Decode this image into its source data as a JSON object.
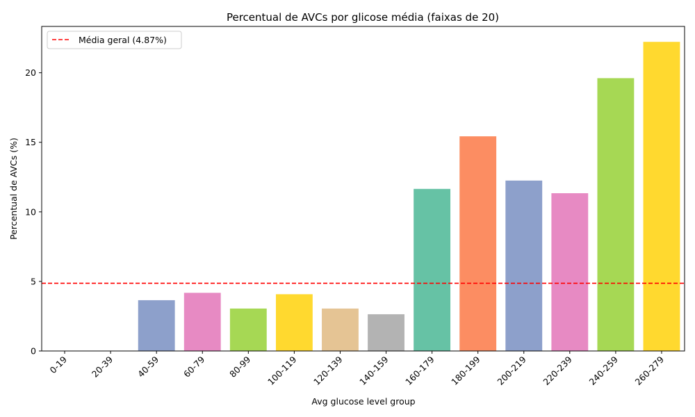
{
  "chart_data": {
    "type": "bar",
    "title": "Percentual de AVCs por glicose média (faixas de 20)",
    "xlabel": "Avg glucose level group",
    "ylabel": "Percentual de AVCs (%)",
    "categories": [
      "0-19",
      "20-39",
      "40-59",
      "60-79",
      "80-99",
      "100-119",
      "120-139",
      "140-159",
      "160-179",
      "180-199",
      "200-219",
      "220-239",
      "240-259",
      "260-279"
    ],
    "values": [
      0,
      0,
      3.65,
      4.18,
      3.05,
      4.08,
      3.05,
      2.64,
      11.65,
      15.43,
      12.25,
      11.34,
      19.61,
      22.22
    ],
    "bar_colors": [
      "#66c2a5",
      "#fc8d62",
      "#8da0cb",
      "#e78ac3",
      "#a6d854",
      "#ffd92f",
      "#e5c494",
      "#b3b3b3",
      "#66c2a5",
      "#fc8d62",
      "#8da0cb",
      "#e78ac3",
      "#a6d854",
      "#ffd92f"
    ],
    "yticks": [
      0,
      5,
      10,
      15,
      20
    ],
    "ylim": [
      0,
      23.33
    ],
    "reference_line": {
      "label": "Média geral (4.87%)",
      "value": 4.87,
      "color": "#ff0000",
      "style": "dashed"
    },
    "legend_position": "top-left",
    "grid": false
  }
}
